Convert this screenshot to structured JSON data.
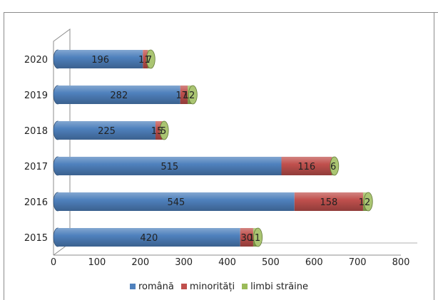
{
  "chart_data": {
    "type": "bar",
    "orientation": "horizontal",
    "stacked": true,
    "style": "3d-cylinder",
    "categories": [
      "2015",
      "2016",
      "2017",
      "2018",
      "2019",
      "2020"
    ],
    "series": [
      {
        "name": "română",
        "values": [
          420,
          545,
          515,
          225,
          282,
          196
        ],
        "color": "#4F81BD"
      },
      {
        "name": "minorități",
        "values": [
          30,
          158,
          116,
          15,
          17,
          11
        ],
        "color": "#C0504D"
      },
      {
        "name": "limbi străine",
        "values": [
          11,
          12,
          6,
          5,
          12,
          7
        ],
        "color": "#9BBB59"
      }
    ],
    "data_labels": {
      "2015": [
        "420",
        "30",
        "11"
      ],
      "2016": [
        "545",
        "158",
        "12"
      ],
      "2017": [
        "515",
        "116",
        "6"
      ],
      "2018": [
        "225",
        "15",
        "5"
      ],
      "2019": [
        "282",
        "17",
        "12"
      ],
      "2020": [
        "196",
        "11",
        "7"
      ]
    },
    "xlim": [
      0,
      800
    ],
    "x_ticks": [
      "0",
      "100",
      "200",
      "300",
      "400",
      "500",
      "600",
      "700",
      "800"
    ],
    "grid": false,
    "legend_position": "bottom"
  }
}
